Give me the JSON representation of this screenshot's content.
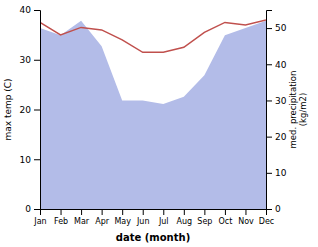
{
  "chart_data": {
    "type": "line",
    "categories": [
      "Jan",
      "Feb",
      "Mar",
      "Apr",
      "May",
      "Jun",
      "Jul",
      "Aug",
      "Sep",
      "Oct",
      "Nov",
      "Dec"
    ],
    "xlabel": "date (month)",
    "ylabel": "max temp (C)",
    "y2label": "med. precipitation\n(kg/m2)",
    "ylim": [
      0,
      40
    ],
    "yticks": [
      0,
      10,
      20,
      30,
      40
    ],
    "y2lim": [
      0,
      55
    ],
    "y2ticks": [
      0,
      10,
      20,
      30,
      40,
      50
    ],
    "series": [
      {
        "type": "area",
        "axis": "y2",
        "color": "#b3bce8",
        "values": [
          50,
          48,
          52,
          45,
          30,
          30,
          29,
          31,
          37,
          48,
          50,
          52
        ]
      },
      {
        "type": "line",
        "color": "#c0504d",
        "values": [
          37.5,
          35.0,
          36.5,
          36.0,
          34.0,
          31.5,
          31.5,
          32.5,
          35.5,
          37.5,
          37.0,
          38.0
        ]
      }
    ]
  }
}
